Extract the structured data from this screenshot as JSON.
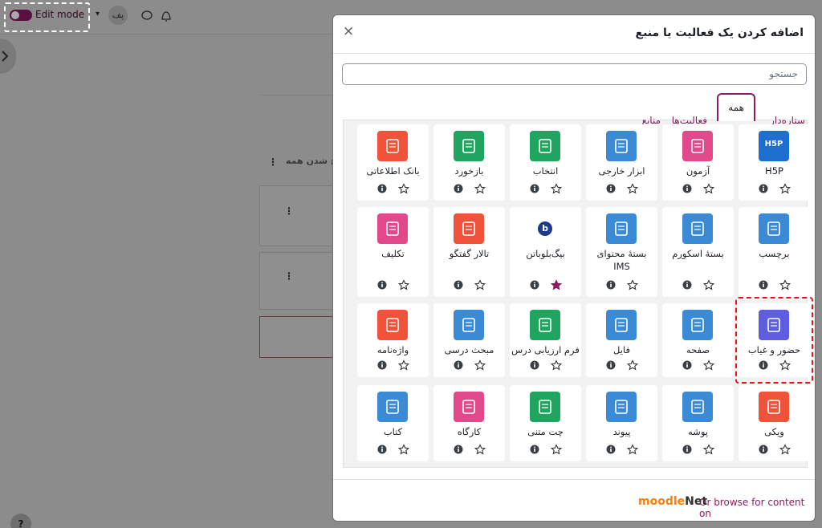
{
  "topbar": {
    "edit_mode": "Edit mode",
    "avatar": "پف"
  },
  "background": {
    "fragment": "ع شدن همه"
  },
  "help": "?",
  "modal": {
    "title": "اضافه کردن یک فعالیت یا منبع",
    "close": "×",
    "search_placeholder": "جستجو",
    "tabs": [
      "ستاره‌دار",
      "همه",
      "فعالیت‌ها",
      "منابع"
    ],
    "active_tab": 1,
    "items": [
      {
        "label": "H5P",
        "color": "#1f6fd1",
        "icon_text": "H5P"
      },
      {
        "label": "آزمون",
        "color": "#e2498a"
      },
      {
        "label": "ابزار خارجی",
        "color": "#3b8ad6"
      },
      {
        "label": "انتخاب",
        "color": "#1fa55f"
      },
      {
        "label": "بازخورد",
        "color": "#1fa55f"
      },
      {
        "label": "بانک اطلاعاتی",
        "color": "#f0533a"
      },
      {
        "label": "برچسب",
        "color": "#3b8ad6"
      },
      {
        "label": "بستهٔ اسکورم",
        "color": "#3b8ad6"
      },
      {
        "label": "بستهٔ محتوای IMS",
        "color": "#3b8ad6"
      },
      {
        "label": "بیگ‌بلوباتن",
        "color": "#ffffff",
        "icon_text": "b",
        "starred": true
      },
      {
        "label": "تالار گفتگو",
        "color": "#f0533a"
      },
      {
        "label": "تکلیف",
        "color": "#e2498a"
      },
      {
        "label": "حضور و غیاب",
        "color": "#5d5fe0",
        "highlighted": true
      },
      {
        "label": "صفحه",
        "color": "#3b8ad6"
      },
      {
        "label": "فایل",
        "color": "#3b8ad6"
      },
      {
        "label": "فرم ارزیابی درس",
        "color": "#1fa55f"
      },
      {
        "label": "مبحث درسی",
        "color": "#3b8ad6"
      },
      {
        "label": "واژه‌نامه",
        "color": "#f0533a"
      },
      {
        "label": "ویکی",
        "color": "#f0533a"
      },
      {
        "label": "پوشه",
        "color": "#3b8ad6"
      },
      {
        "label": "پیوند",
        "color": "#3b8ad6"
      },
      {
        "label": "چت متنی",
        "color": "#1fa55f"
      },
      {
        "label": "کارگاه",
        "color": "#e2498a"
      },
      {
        "label": "کتاب",
        "color": "#3b8ad6"
      }
    ],
    "footer": {
      "browse_text": "Or browse for content on",
      "logo_a": "moodle",
      "logo_b": "Net"
    }
  }
}
